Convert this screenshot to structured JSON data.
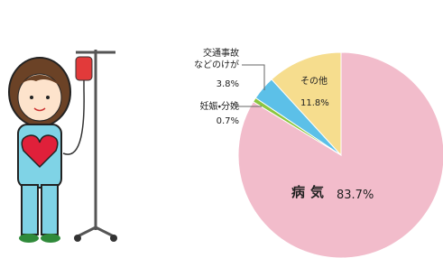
{
  "chart_data": {
    "type": "pie",
    "categories": [
      "病気",
      "妊娠・分娩",
      "交通事故\nなどのけが",
      "その他"
    ],
    "values": [
      83.7,
      0.7,
      3.8,
      11.8
    ],
    "value_labels": [
      "83.7%",
      "0.7%",
      "3.8%",
      "11.8%"
    ],
    "colors": [
      "#f2bccb",
      "#8cc63f",
      "#5cc0e8",
      "#f6dd8e"
    ]
  }
}
